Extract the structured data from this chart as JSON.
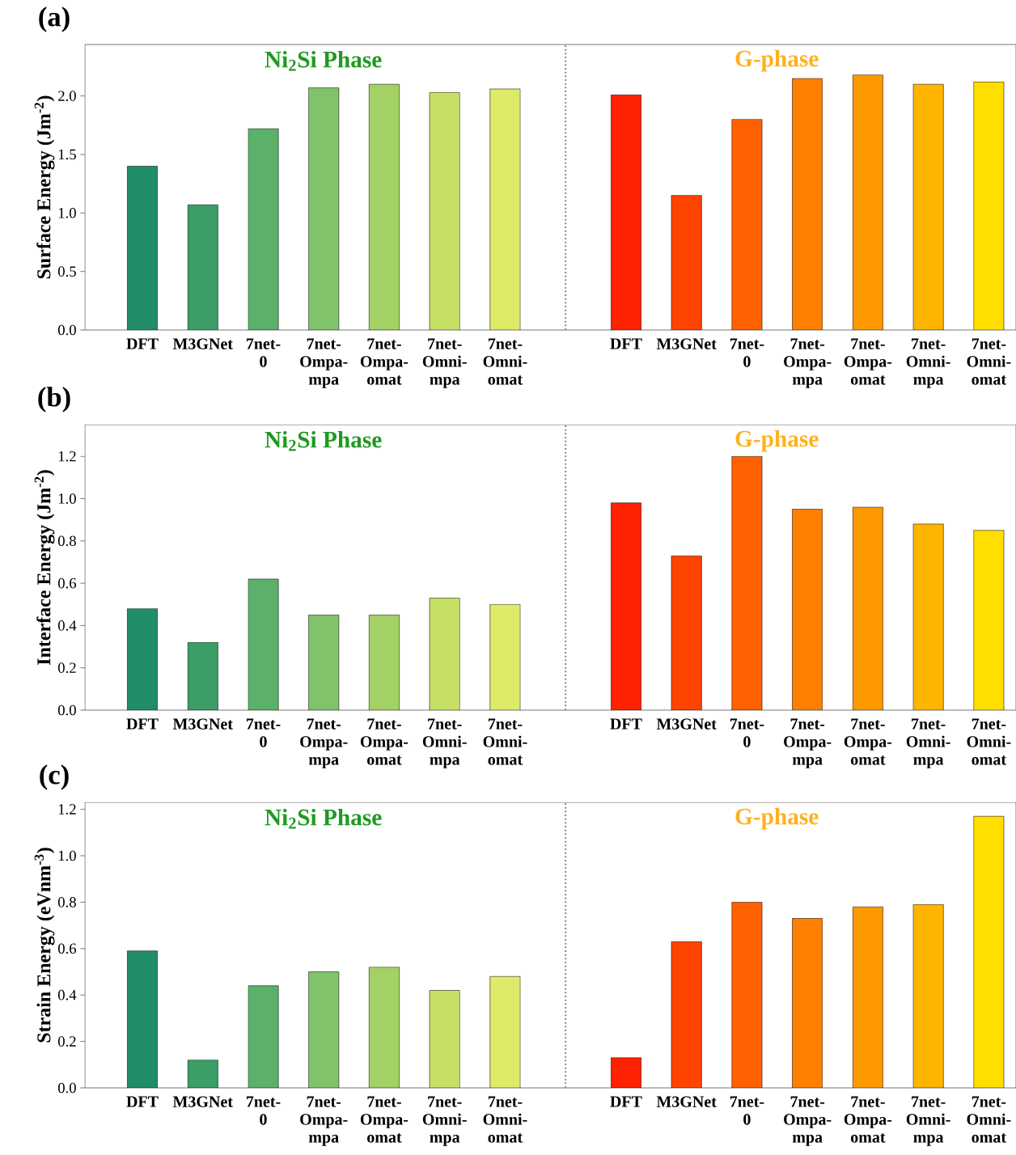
{
  "chart_data": [
    {
      "type": "bar",
      "title": "(a)",
      "ylabel": "Surface Energy (Jm$^{-2}$)",
      "categories": [
        "DFT",
        "M3GNet",
        "7net-0",
        "7net-Ompa-mpa",
        "7net-Ompa-omat",
        "7net-Omni-mpa",
        "7net-Omni-omat",
        null,
        "DFT",
        "M3GNet",
        "7net-0",
        "7net-Ompa-mpa",
        "7net-Ompa-omat",
        "7net-Omni-mpa",
        "7net-Omni-omat"
      ],
      "values": [
        1.4,
        1.07,
        1.72,
        2.07,
        2.1,
        2.03,
        2.06,
        null,
        2.01,
        1.15,
        1.8,
        2.15,
        2.18,
        2.1,
        2.12
      ],
      "colors": [
        "#208c6a",
        "#3a9e66",
        "#5bb06a",
        "#80c36a",
        "#a3d164",
        "#c5e064",
        "#dfeb68",
        null,
        "#ff2200",
        "#ff4400",
        "#ff6100",
        "#ff7f00",
        "#ff9900",
        "#ffb400",
        "#ffde00"
      ],
      "ylim": [
        0,
        2.44
      ],
      "yticks": [
        {
          "value": 0,
          "label": "0.0"
        },
        {
          "value": 0.5,
          "label": "0.5"
        },
        {
          "value": 1,
          "label": "1.0"
        },
        {
          "value": 1.5,
          "label": "1.5"
        },
        {
          "value": 2,
          "label": "2.0"
        }
      ],
      "annotations": [
        "Ni$_{2}$Si Phase",
        "G-phase"
      ]
    },
    {
      "type": "bar",
      "title": "(b)",
      "ylabel": "Interface Energy (Jm$^{-2}$)",
      "categories": [
        "DFT",
        "M3GNet",
        "7net-0",
        "7net-Ompa-mpa",
        "7net-Ompa-omat",
        "7net-Omni-mpa",
        "7net-Omni-omat",
        null,
        "DFT",
        "M3GNet",
        "7net-0",
        "7net-Ompa-mpa",
        "7net-Ompa-omat",
        "7net-Omni-mpa",
        "7net-Omni-omat"
      ],
      "values": [
        0.48,
        0.32,
        0.62,
        0.45,
        0.45,
        0.53,
        0.5,
        null,
        0.98,
        0.73,
        1.2,
        0.95,
        0.96,
        0.88,
        0.85
      ],
      "colors": [
        "#208c6a",
        "#3a9e66",
        "#5bb06a",
        "#80c36a",
        "#a3d164",
        "#c5e064",
        "#dfeb68",
        null,
        "#ff2200",
        "#ff4400",
        "#ff6100",
        "#ff7f00",
        "#ff9900",
        "#ffb400",
        "#ffde00"
      ],
      "ylim": [
        0,
        1.35
      ],
      "yticks": [
        {
          "value": 0,
          "label": "0.0"
        },
        {
          "value": 0.2,
          "label": "0.2"
        },
        {
          "value": 0.4,
          "label": "0.4"
        },
        {
          "value": 0.6,
          "label": "0.6"
        },
        {
          "value": 0.8,
          "label": "0.8"
        },
        {
          "value": 1,
          "label": "1.0"
        },
        {
          "value": 1.2,
          "label": "1.2"
        }
      ],
      "annotations": [
        "Ni$_{2}$Si Phase",
        "G-phase"
      ]
    },
    {
      "type": "bar",
      "title": "(c)",
      "ylabel": "Strain Energy (eVnm$^{-3}$)",
      "categories": [
        "DFT",
        "M3GNet",
        "7net-0",
        "7net-Ompa-mpa",
        "7net-Ompa-omat",
        "7net-Omni-mpa",
        "7net-Omni-omat",
        null,
        "DFT",
        "M3GNet",
        "7net-0",
        "7net-Ompa-mpa",
        "7net-Ompa-omat",
        "7net-Omni-mpa",
        "7net-Omni-omat"
      ],
      "values": [
        0.59,
        0.12,
        0.44,
        0.5,
        0.52,
        0.42,
        0.48,
        null,
        0.13,
        0.63,
        0.8,
        0.73,
        0.78,
        0.79,
        1.17
      ],
      "colors": [
        "#208c6a",
        "#3a9e66",
        "#5bb06a",
        "#80c36a",
        "#a3d164",
        "#c5e064",
        "#dfeb68",
        null,
        "#ff2200",
        "#ff4400",
        "#ff6100",
        "#ff7f00",
        "#ff9900",
        "#ffb400",
        "#ffde00"
      ],
      "ylim": [
        0,
        1.23
      ],
      "yticks": [
        {
          "value": 0,
          "label": "0.0"
        },
        {
          "value": 0.2,
          "label": "0.2"
        },
        {
          "value": 0.4,
          "label": "0.4"
        },
        {
          "value": 0.6,
          "label": "0.6"
        },
        {
          "value": 0.8,
          "label": "0.8"
        },
        {
          "value": 1,
          "label": "1.0"
        },
        {
          "value": 1.2,
          "label": "1.2"
        }
      ],
      "annotations": [
        "Ni$_{2}$Si Phase",
        "G-phase"
      ]
    }
  ]
}
